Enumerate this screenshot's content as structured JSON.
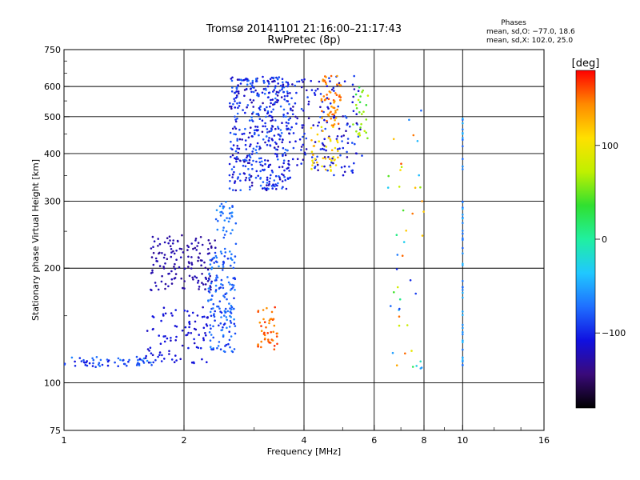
{
  "title_line1": "Tromsø 20141101 21:16:00–21:17:43",
  "title_line2": "RwPretec (8p)",
  "info": {
    "header": "Phases",
    "line1": "mean, sd,O: −77.0, 18.6",
    "line2": "mean, sd,X: 102.0, 25.0"
  },
  "colorbar": {
    "unit_label": "[deg]",
    "ticks": [
      {
        "value": 100,
        "label": "100"
      },
      {
        "value": 0,
        "label": "0"
      },
      {
        "value": -100,
        "label": "−100"
      }
    ],
    "range": [
      -180,
      180
    ],
    "colors": [
      "#000000",
      "#3a0a7a",
      "#1010e0",
      "#1f6fff",
      "#20c8ff",
      "#20f0a0",
      "#30e030",
      "#c0f000",
      "#ffe000",
      "#ff8a00",
      "#ff0000"
    ]
  },
  "chart_data": {
    "type": "scatter",
    "title": "Tromsø 20141101 21:16:00–21:17:43",
    "subtitle": "RwPretec (8p)",
    "xlabel": "Frequency [MHz]",
    "ylabel": "Stationary phase Virtual Height [km]",
    "x_scale": "log",
    "y_scale": "log",
    "xlim": [
      1,
      16
    ],
    "ylim": [
      75,
      750
    ],
    "x_ticks": [
      1,
      2,
      4,
      6,
      8,
      10,
      16
    ],
    "x_tick_labels": [
      "1",
      "2",
      "4",
      "6",
      "8",
      "10",
      "16"
    ],
    "y_ticks": [
      75,
      100,
      200,
      300,
      400,
      500,
      600,
      750
    ],
    "y_tick_labels": [
      "75",
      "100",
      "200",
      "300",
      "400",
      "500",
      "600",
      "750"
    ],
    "grid": true,
    "color_quantity": "phase [deg]",
    "clusters": [
      {
        "desc": "low E-region trace",
        "x": [
          1.0,
          1.7
        ],
        "y": [
          110,
          117
        ],
        "phase": [
          -60,
          -110
        ],
        "count": 60
      },
      {
        "desc": "trace rising to F",
        "x": [
          1.6,
          2.3
        ],
        "y": [
          112,
          160
        ],
        "phase": [
          -100,
          -120
        ],
        "count": 90
      },
      {
        "desc": "blob near 200 km",
        "x": [
          1.65,
          2.4
        ],
        "y": [
          175,
          245
        ],
        "phase": [
          -120,
          -135
        ],
        "count": 140
      },
      {
        "desc": "column 2.3–2.7 MHz",
        "x": [
          2.3,
          2.7
        ],
        "y": [
          120,
          220
        ],
        "phase": [
          -60,
          -100
        ],
        "count": 160
      },
      {
        "desc": "column upper part",
        "x": [
          2.4,
          2.7
        ],
        "y": [
          220,
          300
        ],
        "phase": [
          -55,
          -85
        ],
        "count": 40
      },
      {
        "desc": "F-layer upper block",
        "x": [
          2.6,
          3.7
        ],
        "y": [
          320,
          640
        ],
        "phase": [
          -70,
          -130
        ],
        "count": 460
      },
      {
        "desc": "F-layer right block",
        "x": [
          3.7,
          5.6
        ],
        "y": [
          350,
          640
        ],
        "phase": [
          -80,
          -130
        ],
        "count": 160
      },
      {
        "desc": "X-mode yellow cluster",
        "x": [
          4.1,
          4.9
        ],
        "y": [
          360,
          470
        ],
        "phase": [
          90,
          130
        ],
        "count": 40
      },
      {
        "desc": "X-mode orange streak",
        "x": [
          4.4,
          4.95
        ],
        "y": [
          470,
          640
        ],
        "phase": [
          130,
          160
        ],
        "count": 55
      },
      {
        "desc": "green/yellow arc",
        "x": [
          5.3,
          5.8
        ],
        "y": [
          430,
          600
        ],
        "phase": [
          20,
          80
        ],
        "count": 25
      },
      {
        "desc": "orange arc near 120–160 km",
        "x": [
          3.05,
          3.45
        ],
        "y": [
          122,
          160
        ],
        "phase": [
          140,
          170
        ],
        "count": 45
      },
      {
        "desc": "vertical line at 10 MHz",
        "x": [
          10,
          10
        ],
        "y": [
          110,
          500
        ],
        "phase": [
          -40,
          -80
        ],
        "count": 55
      },
      {
        "desc": "scattered points 6.5–8 MHz",
        "x": [
          6.5,
          8
        ],
        "y": [
          105,
          600
        ],
        "phase": [
          -100,
          160
        ],
        "count": 45
      }
    ]
  }
}
